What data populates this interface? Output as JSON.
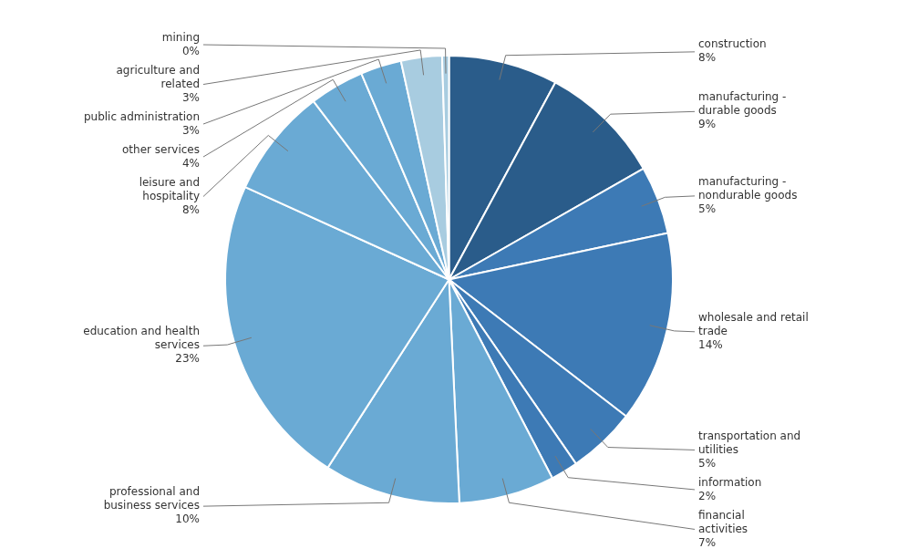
{
  "chart_data": {
    "type": "pie",
    "categories": [
      "construction",
      "manufacturing -\ndurable goods",
      "manufacturing -\nnondurable goods",
      "wholesale and retail\ntrade",
      "transportation and\nutilities",
      "information",
      "financial\nactivities",
      "professional and\nbusiness services",
      "education and health\nservices",
      "leisure and\nhospitality",
      "other services",
      "public administration",
      "agriculture and\nrelated",
      "mining"
    ],
    "values": [
      8,
      9,
      5,
      14,
      5,
      2,
      7,
      10,
      23,
      8,
      4,
      3,
      3,
      0.5
    ],
    "value_labels": [
      "8%",
      "9%",
      "5%",
      "14%",
      "5%",
      "2%",
      "7%",
      "10%",
      "23%",
      "8%",
      "4%",
      "3%",
      "3%",
      "0%"
    ],
    "colors": [
      "#2a5c8a",
      "#2a5c8a",
      "#3d7ab5",
      "#3d7ab5",
      "#3d7ab5",
      "#3d7ab5",
      "#6aaad4",
      "#6aaad4",
      "#6aaad4",
      "#6aaad4",
      "#6aaad4",
      "#6aaad4",
      "#a8cce0",
      "#a8cce0"
    ],
    "data_labels": true
  }
}
